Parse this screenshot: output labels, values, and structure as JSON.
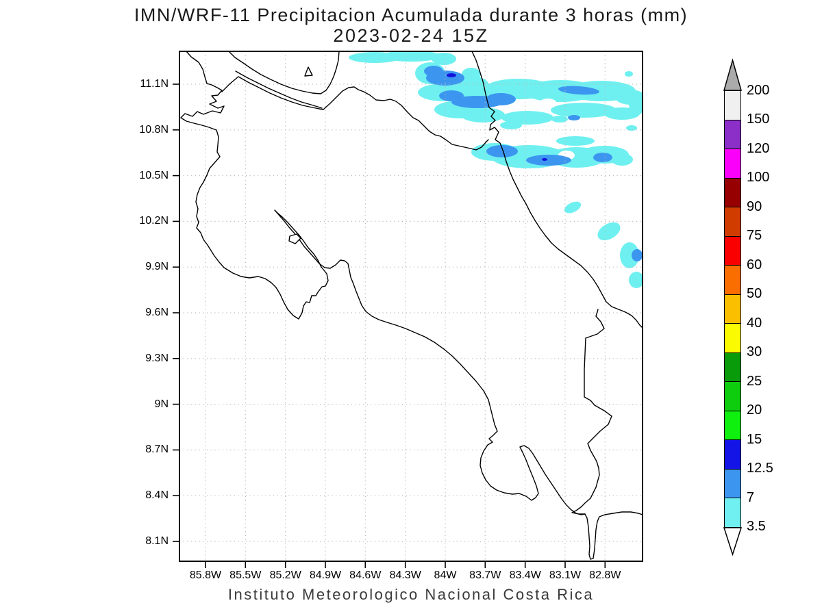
{
  "title_line1": "IMN/WRF-11 Precipitacion Acumulada durante 3 horas (mm)",
  "title_line2": "2023-02-24 15Z",
  "footer": "Instituto Meteorologico Nacional Costa Rica",
  "axes": {
    "lat_labels": [
      "11.1N",
      "10.8N",
      "10.5N",
      "10.2N",
      "9.9N",
      "9.6N",
      "9.3N",
      "9N",
      "8.7N",
      "8.4N",
      "8.1N"
    ],
    "lon_labels": [
      "85.8W",
      "85.5W",
      "85.2W",
      "84.9W",
      "84.6W",
      "84.3W",
      "84W",
      "83.7W",
      "83.4W",
      "83.1W",
      "82.8W"
    ]
  },
  "colorbar": {
    "labels_top_to_bottom": [
      "200",
      "150",
      "120",
      "100",
      "90",
      "75",
      "60",
      "50",
      "40",
      "30",
      "25",
      "20",
      "15",
      "12.5",
      "7",
      "3.5"
    ],
    "colors_top_to_bottom": [
      "#F0F0F0",
      "#8C2FC8",
      "#FA00FA",
      "#960000",
      "#D03C00",
      "#FA0000",
      "#FA6E00",
      "#FAC000",
      "#FAFA00",
      "#0A9B0A",
      "#0ECC0E",
      "#0FF00F",
      "#1414E6",
      "#3C96F0",
      "#70F0F0"
    ],
    "over_color": "#ABABAB",
    "under_color": "#FFFFFF",
    "units": "mm"
  },
  "map_colors": {
    "precip_light": "#6FF0F0",
    "precip_medium": "#3C96F0",
    "precip_heavy": "#1414DD",
    "coastline": "#000000",
    "grid": "#b8b8b8"
  }
}
